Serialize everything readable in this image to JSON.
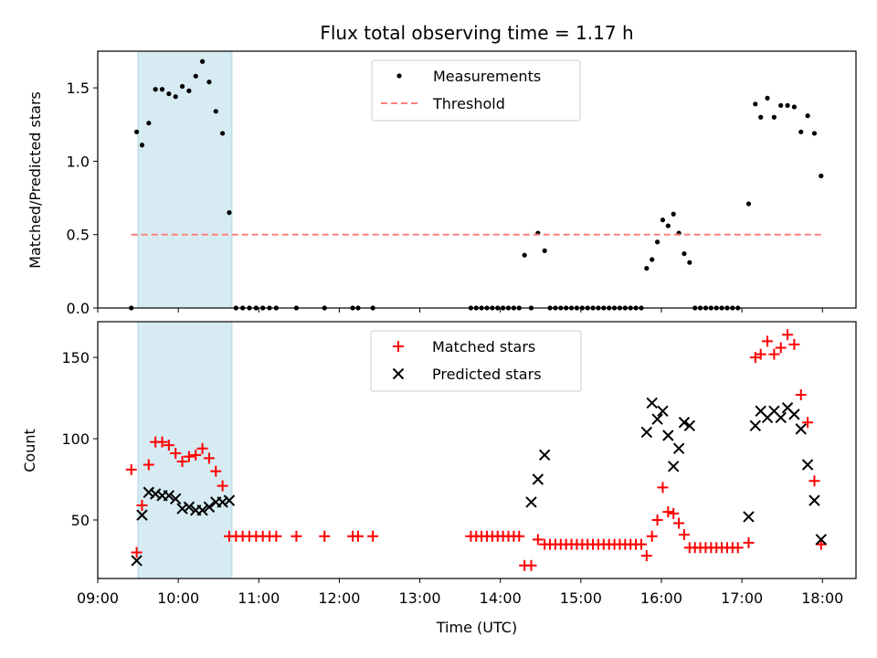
{
  "chart_data": {
    "title": "Flux total observing time = 1.17 h",
    "xlabel": "Time (UTC)",
    "x_ticks": [
      "09:00",
      "10:00",
      "11:00",
      "12:00",
      "13:00",
      "14:00",
      "15:00",
      "16:00",
      "17:00",
      "18:00"
    ],
    "xlim": [
      "09:00",
      "18:25"
    ],
    "shaded_span": [
      "09:30",
      "10:40"
    ],
    "shaded_color": "#add8e6",
    "panels": [
      {
        "type": "scatter",
        "ylabel": "Matched/Predicted stars",
        "ylim": [
          0,
          1.75
        ],
        "y_ticks": [
          0.0,
          0.5,
          1.0,
          1.5
        ],
        "legend_position": "upper-center",
        "series": [
          {
            "name": "Measurements",
            "marker": "dot",
            "color": "#000000",
            "x": [
              "09:25",
              "09:29",
              "09:33",
              "09:38",
              "09:43",
              "09:48",
              "09:53",
              "09:58",
              "10:03",
              "10:08",
              "10:13",
              "10:18",
              "10:23",
              "10:28",
              "10:33",
              "10:38",
              "10:43",
              "10:48",
              "10:53",
              "10:58",
              "11:03",
              "11:08",
              "11:13",
              "11:28",
              "11:49",
              "12:10",
              "12:14",
              "12:25",
              "13:38",
              "13:42",
              "13:46",
              "13:50",
              "13:54",
              "13:58",
              "14:02",
              "14:06",
              "14:10",
              "14:14",
              "14:18",
              "14:23",
              "14:28",
              "14:33",
              "14:37",
              "14:41",
              "14:45",
              "14:49",
              "14:53",
              "14:57",
              "15:01",
              "15:05",
              "15:09",
              "15:13",
              "15:17",
              "15:21",
              "15:25",
              "15:29",
              "15:33",
              "15:37",
              "15:41",
              "15:45",
              "15:49",
              "15:53",
              "15:57",
              "16:01",
              "16:05",
              "16:09",
              "16:13",
              "16:17",
              "16:21",
              "16:25",
              "16:29",
              "16:33",
              "16:37",
              "16:41",
              "16:45",
              "16:49",
              "16:53",
              "16:57",
              "17:05",
              "17:10",
              "17:14",
              "17:19",
              "17:24",
              "17:29",
              "17:34",
              "17:39",
              "17:44",
              "17:49",
              "17:54",
              "17:59"
            ],
            "y": [
              0.0,
              1.2,
              1.11,
              1.26,
              1.49,
              1.49,
              1.46,
              1.44,
              1.51,
              1.48,
              1.58,
              1.68,
              1.54,
              1.34,
              1.19,
              0.65,
              0.0,
              0.0,
              0.0,
              0.0,
              0.0,
              0.0,
              0.0,
              0.0,
              0.0,
              0.0,
              0.0,
              0.0,
              0.0,
              0.0,
              0.0,
              0.0,
              0.0,
              0.0,
              0.0,
              0.0,
              0.0,
              0.0,
              0.36,
              0.0,
              0.51,
              0.39,
              0.0,
              0.0,
              0.0,
              0.0,
              0.0,
              0.0,
              0.0,
              0.0,
              0.0,
              0.0,
              0.0,
              0.0,
              0.0,
              0.0,
              0.0,
              0.0,
              0.0,
              0.0,
              0.27,
              0.33,
              0.45,
              0.6,
              0.56,
              0.64,
              0.51,
              0.37,
              0.31,
              0.0,
              0.0,
              0.0,
              0.0,
              0.0,
              0.0,
              0.0,
              0.0,
              0.0,
              0.71,
              1.39,
              1.3,
              1.43,
              1.3,
              1.38,
              1.38,
              1.37,
              1.2,
              1.31,
              1.19,
              0.9
            ]
          },
          {
            "name": "Threshold",
            "marker": "dashed-line",
            "color": "#ff7f7f",
            "x": [
              "09:25",
              "17:59"
            ],
            "y": [
              0.5,
              0.5
            ]
          }
        ]
      },
      {
        "type": "scatter",
        "ylabel": "Count",
        "ylim": [
          14,
          172
        ],
        "y_ticks": [
          50,
          100,
          150
        ],
        "legend_position": "upper-center",
        "series": [
          {
            "name": "Matched stars",
            "marker": "plus",
            "color": "#ff0000",
            "x": [
              "09:25",
              "09:29",
              "09:33",
              "09:38",
              "09:43",
              "09:48",
              "09:53",
              "09:58",
              "10:03",
              "10:08",
              "10:13",
              "10:18",
              "10:23",
              "10:28",
              "10:33",
              "10:38",
              "10:43",
              "10:48",
              "10:53",
              "10:58",
              "11:03",
              "11:08",
              "11:13",
              "11:28",
              "11:49",
              "12:10",
              "12:14",
              "12:25",
              "13:38",
              "13:42",
              "13:46",
              "13:50",
              "13:54",
              "13:58",
              "14:02",
              "14:06",
              "14:10",
              "14:14",
              "14:18",
              "14:23",
              "14:28",
              "14:33",
              "14:37",
              "14:41",
              "14:45",
              "14:49",
              "14:53",
              "14:57",
              "15:01",
              "15:05",
              "15:09",
              "15:13",
              "15:17",
              "15:21",
              "15:25",
              "15:29",
              "15:33",
              "15:37",
              "15:41",
              "15:45",
              "15:49",
              "15:53",
              "15:57",
              "16:01",
              "16:05",
              "16:09",
              "16:13",
              "16:17",
              "16:21",
              "16:25",
              "16:29",
              "16:33",
              "16:37",
              "16:41",
              "16:45",
              "16:49",
              "16:53",
              "16:57",
              "17:05",
              "17:10",
              "17:14",
              "17:19",
              "17:24",
              "17:29",
              "17:34",
              "17:39",
              "17:44",
              "17:49",
              "17:54",
              "17:59"
            ],
            "y": [
              81,
              30,
              59,
              84,
              98,
              98,
              96,
              91,
              86,
              89,
              90,
              94,
              88,
              80,
              71,
              40,
              40,
              40,
              40,
              40,
              40,
              40,
              40,
              40,
              40,
              40,
              40,
              40,
              40,
              40,
              40,
              40,
              40,
              40,
              40,
              40,
              40,
              40,
              22,
              22,
              38,
              35,
              35,
              35,
              35,
              35,
              35,
              35,
              35,
              35,
              35,
              35,
              35,
              35,
              35,
              35,
              35,
              35,
              35,
              35,
              28,
              40,
              50,
              70,
              55,
              54,
              48,
              41,
              33,
              33,
              33,
              33,
              33,
              33,
              33,
              33,
              33,
              33,
              36,
              150,
              152,
              160,
              152,
              156,
              164,
              158,
              127,
              110,
              74,
              35
            ]
          },
          {
            "name": "Predicted stars",
            "marker": "x",
            "color": "#000000",
            "x": [
              "09:29",
              "09:33",
              "09:38",
              "09:43",
              "09:48",
              "09:53",
              "09:58",
              "10:03",
              "10:08",
              "10:13",
              "10:18",
              "10:23",
              "10:28",
              "10:33",
              "10:38",
              "14:23",
              "14:28",
              "14:33",
              "15:49",
              "15:53",
              "15:57",
              "16:01",
              "16:05",
              "16:09",
              "16:13",
              "16:17",
              "16:21",
              "17:05",
              "17:10",
              "17:14",
              "17:19",
              "17:24",
              "17:29",
              "17:34",
              "17:39",
              "17:44",
              "17:49",
              "17:54",
              "17:59"
            ],
            "y": [
              25,
              53,
              67,
              66,
              65,
              65,
              63,
              57,
              58,
              56,
              56,
              58,
              61,
              61,
              62,
              61,
              75,
              90,
              104,
              122,
              112,
              117,
              102,
              83,
              94,
              110,
              108,
              52,
              108,
              117,
              113,
              117,
              113,
              119,
              115,
              106,
              84,
              62,
              38
            ]
          }
        ]
      }
    ]
  }
}
